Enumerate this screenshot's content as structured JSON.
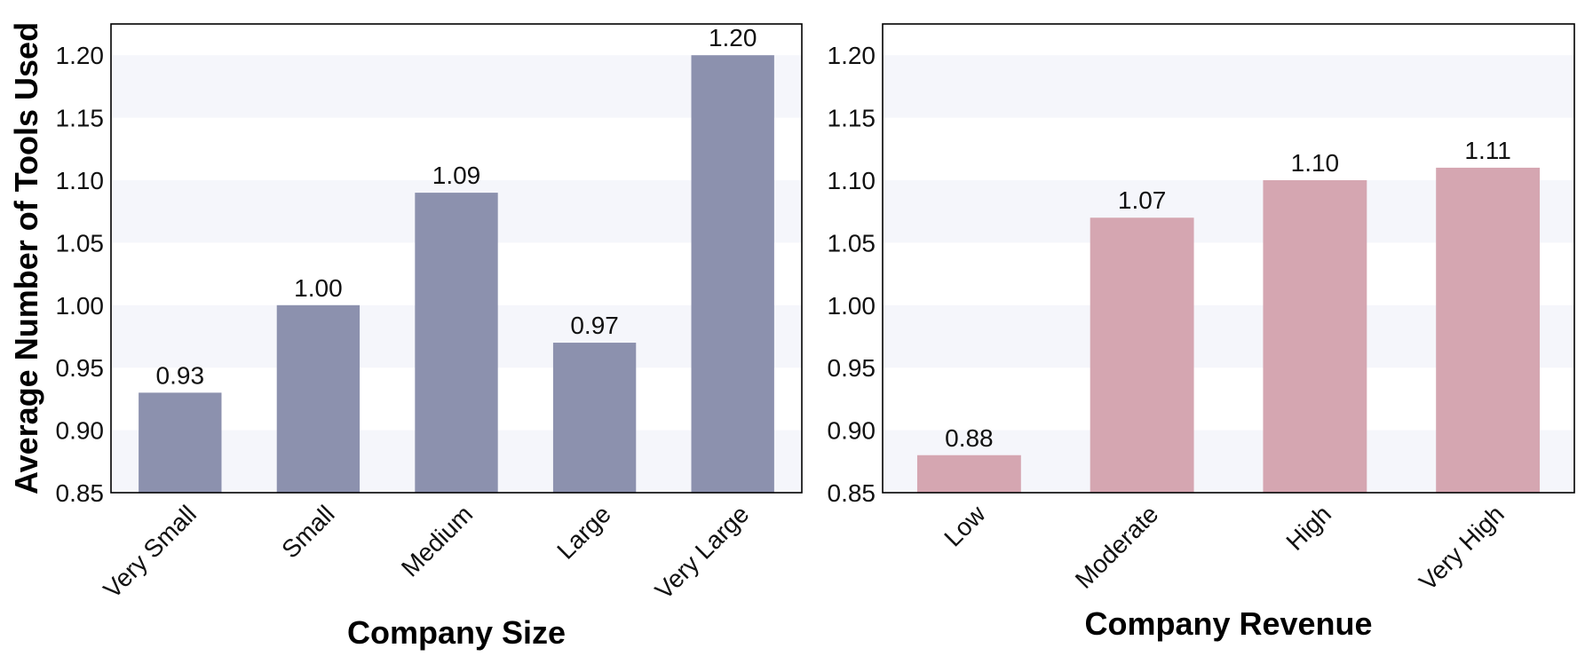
{
  "chart_data": [
    {
      "type": "bar",
      "title": "",
      "categories": [
        "Very Small",
        "Small",
        "Medium",
        "Large",
        "Very Large"
      ],
      "values": [
        0.93,
        1.0,
        1.09,
        0.97,
        1.2
      ],
      "value_labels": [
        "0.93",
        "1.00",
        "1.09",
        "0.97",
        "1.20"
      ],
      "xlabel": "Company Size",
      "ylabel": "Average Number of Tools Used",
      "ylim": [
        0.85,
        1.225
      ],
      "yticks": [
        "0.85",
        "0.90",
        "0.95",
        "1.00",
        "1.05",
        "1.10",
        "1.15",
        "1.20"
      ],
      "bar_color": "#8c91ae",
      "grid": "alternating horizontal bands"
    },
    {
      "type": "bar",
      "title": "",
      "categories": [
        "Low",
        "Moderate",
        "High",
        "Very High"
      ],
      "values": [
        0.88,
        1.07,
        1.1,
        1.11
      ],
      "value_labels": [
        "0.88",
        "1.07",
        "1.10",
        "1.11"
      ],
      "xlabel": "Company Revenue",
      "ylabel": "",
      "ylim": [
        0.85,
        1.225
      ],
      "yticks": [
        "0.85",
        "0.90",
        "0.95",
        "1.00",
        "1.05",
        "1.10",
        "1.15",
        "1.20"
      ],
      "bar_color": "#d5a6b1",
      "grid": "alternating horizontal bands"
    }
  ],
  "colors": {
    "band": "#f5f6fb",
    "frame": "#000000",
    "text": "#111111"
  }
}
